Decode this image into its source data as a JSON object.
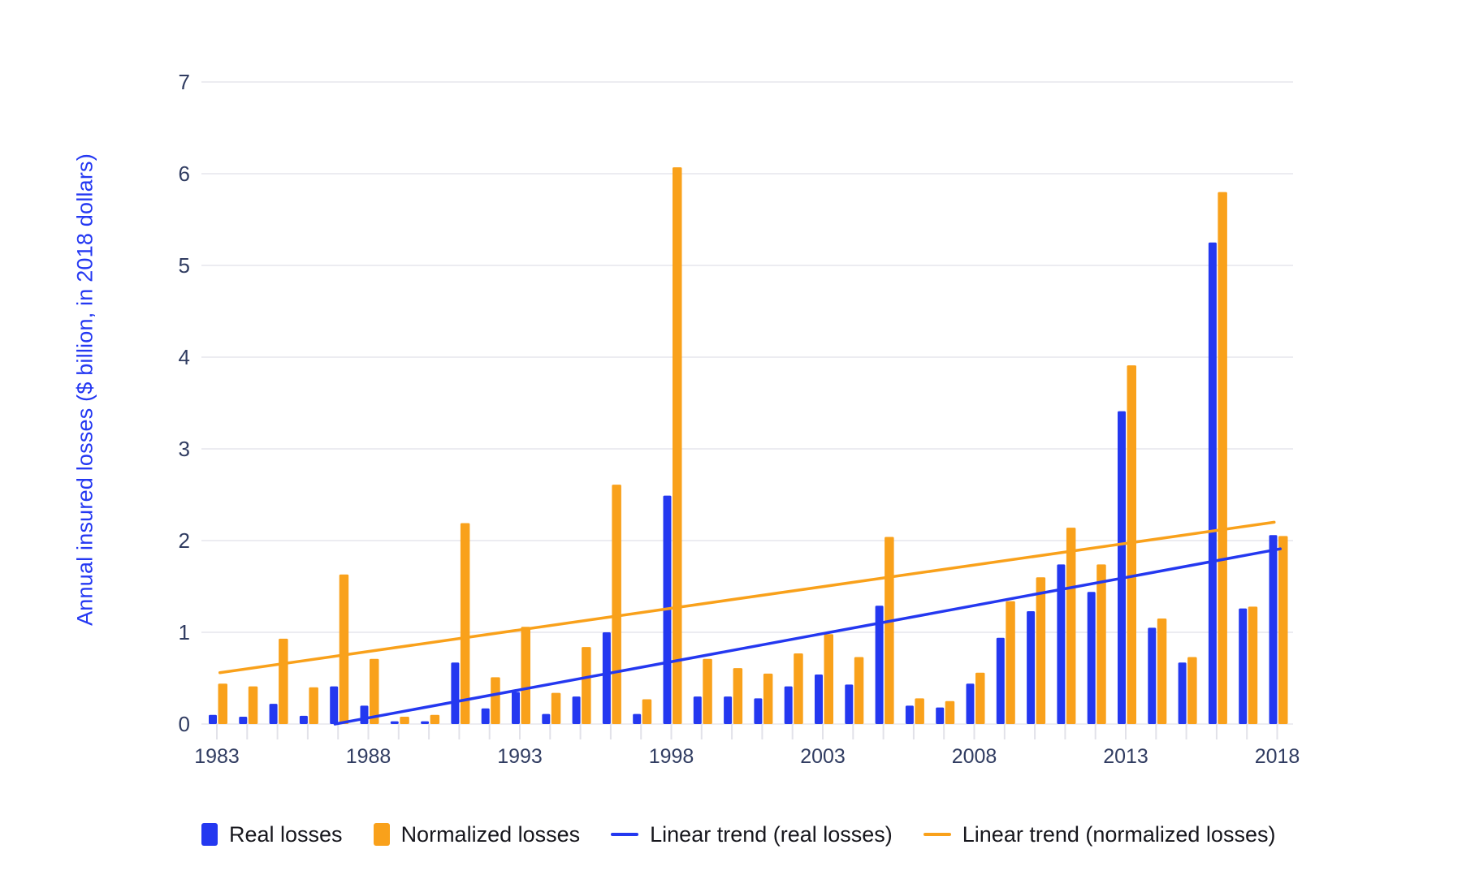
{
  "chart_data": {
    "type": "bar",
    "title": "",
    "xlabel": "",
    "ylabel": "Annual insured losses ($ billion, in 2018 dollars)",
    "ylim": [
      0,
      7
    ],
    "y_ticks": [
      0,
      1,
      2,
      3,
      4,
      5,
      6,
      7
    ],
    "grid": true,
    "legend_position": "bottom",
    "categories": [
      1983,
      1984,
      1985,
      1986,
      1987,
      1988,
      1989,
      1990,
      1991,
      1992,
      1993,
      1994,
      1995,
      1996,
      1997,
      1998,
      1999,
      2000,
      2001,
      2002,
      2003,
      2004,
      2005,
      2006,
      2007,
      2008,
      2009,
      2010,
      2011,
      2012,
      2013,
      2014,
      2015,
      2016,
      2017,
      2018
    ],
    "labeled_x_ticks": [
      1983,
      1988,
      1993,
      1998,
      2003,
      2008,
      2013,
      2018
    ],
    "series": [
      {
        "name": "Real losses",
        "color": "#2438f0",
        "values": [
          0.1,
          0.08,
          0.22,
          0.09,
          0.41,
          0.2,
          0.03,
          0.03,
          0.67,
          0.17,
          0.35,
          0.11,
          0.3,
          1.0,
          0.11,
          2.49,
          0.3,
          0.3,
          0.28,
          0.41,
          0.54,
          0.43,
          1.29,
          0.2,
          0.18,
          0.44,
          0.94,
          1.23,
          1.74,
          1.44,
          3.41,
          1.05,
          0.67,
          5.25,
          1.26,
          2.06
        ]
      },
      {
        "name": "Normalized losses",
        "color": "#f9a11b",
        "values": [
          0.44,
          0.41,
          0.93,
          0.4,
          1.63,
          0.71,
          0.08,
          0.1,
          2.19,
          0.51,
          1.06,
          0.34,
          0.84,
          2.61,
          0.27,
          6.07,
          0.71,
          0.61,
          0.55,
          0.77,
          0.98,
          0.73,
          2.04,
          0.28,
          0.25,
          0.56,
          1.34,
          1.6,
          2.14,
          1.74,
          3.91,
          1.15,
          0.73,
          5.8,
          1.28,
          2.05
        ]
      }
    ],
    "trend_lines": [
      {
        "name": "Linear trend (real losses)",
        "color": "#2438f0",
        "x1_year": 1986.9,
        "y1_value": 0.0,
        "x2_year": 2018.1,
        "y2_value": 1.91
      },
      {
        "name": "Linear trend (normalized losses)",
        "color": "#f9a11b",
        "x1_year": 1983.1,
        "y1_value": 0.56,
        "x2_year": 2017.9,
        "y2_value": 2.2
      }
    ]
  },
  "colors": {
    "axis_text": "#303c61",
    "grid_line": "#ececf1",
    "tick_mark": "#e2e2e9",
    "y_title": "#2438f2",
    "legend_text": "#17171d",
    "background": "#ffffff"
  }
}
